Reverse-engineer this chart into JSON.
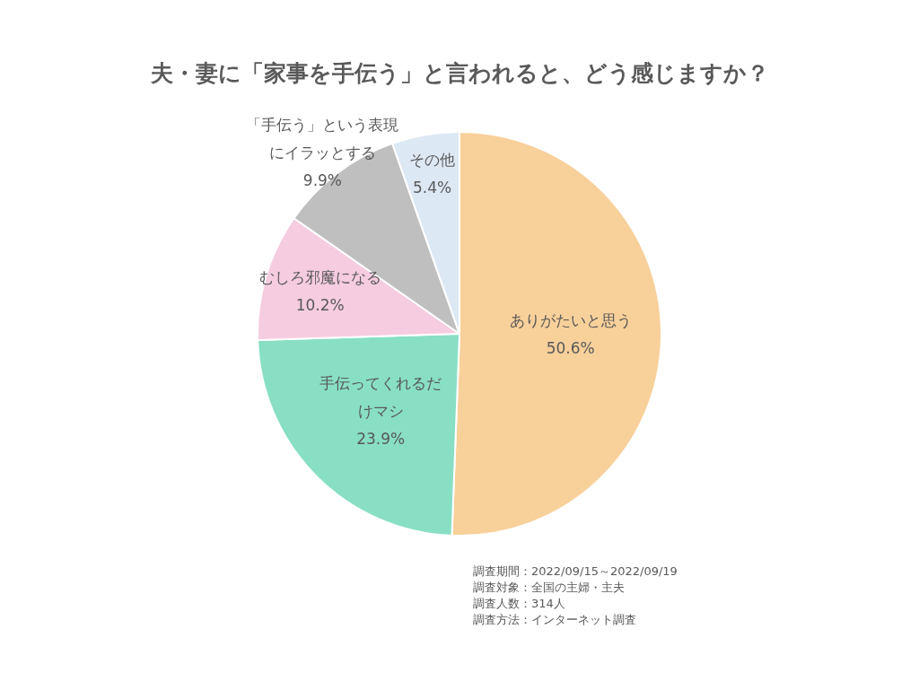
{
  "chart_data": {
    "type": "pie",
    "title": "夫・妻に「家事を手伝う」と言われると、どう感じますか？",
    "categories": [
      "ありがたいと思う",
      "手伝ってくれるだけマシ",
      "むしろ邪魔になる",
      "「手伝う」という表現にイラッとする",
      "その他"
    ],
    "values": [
      50.6,
      23.9,
      10.2,
      9.9,
      5.4
    ],
    "value_labels": [
      "50.6%",
      "23.9%",
      "10.2%",
      "9.9%",
      "5.4%"
    ],
    "colors": [
      "#f8d09a",
      "#88dfc4",
      "#f6cce0",
      "#bfbfbf",
      "#dde8f5"
    ],
    "legend": false,
    "annotations": [
      "調査期間：2022/09/15～2022/09/19",
      "調査対象：全国の主婦・主夫",
      "調査人数：314人",
      "調査方法：インターネット調査"
    ]
  }
}
